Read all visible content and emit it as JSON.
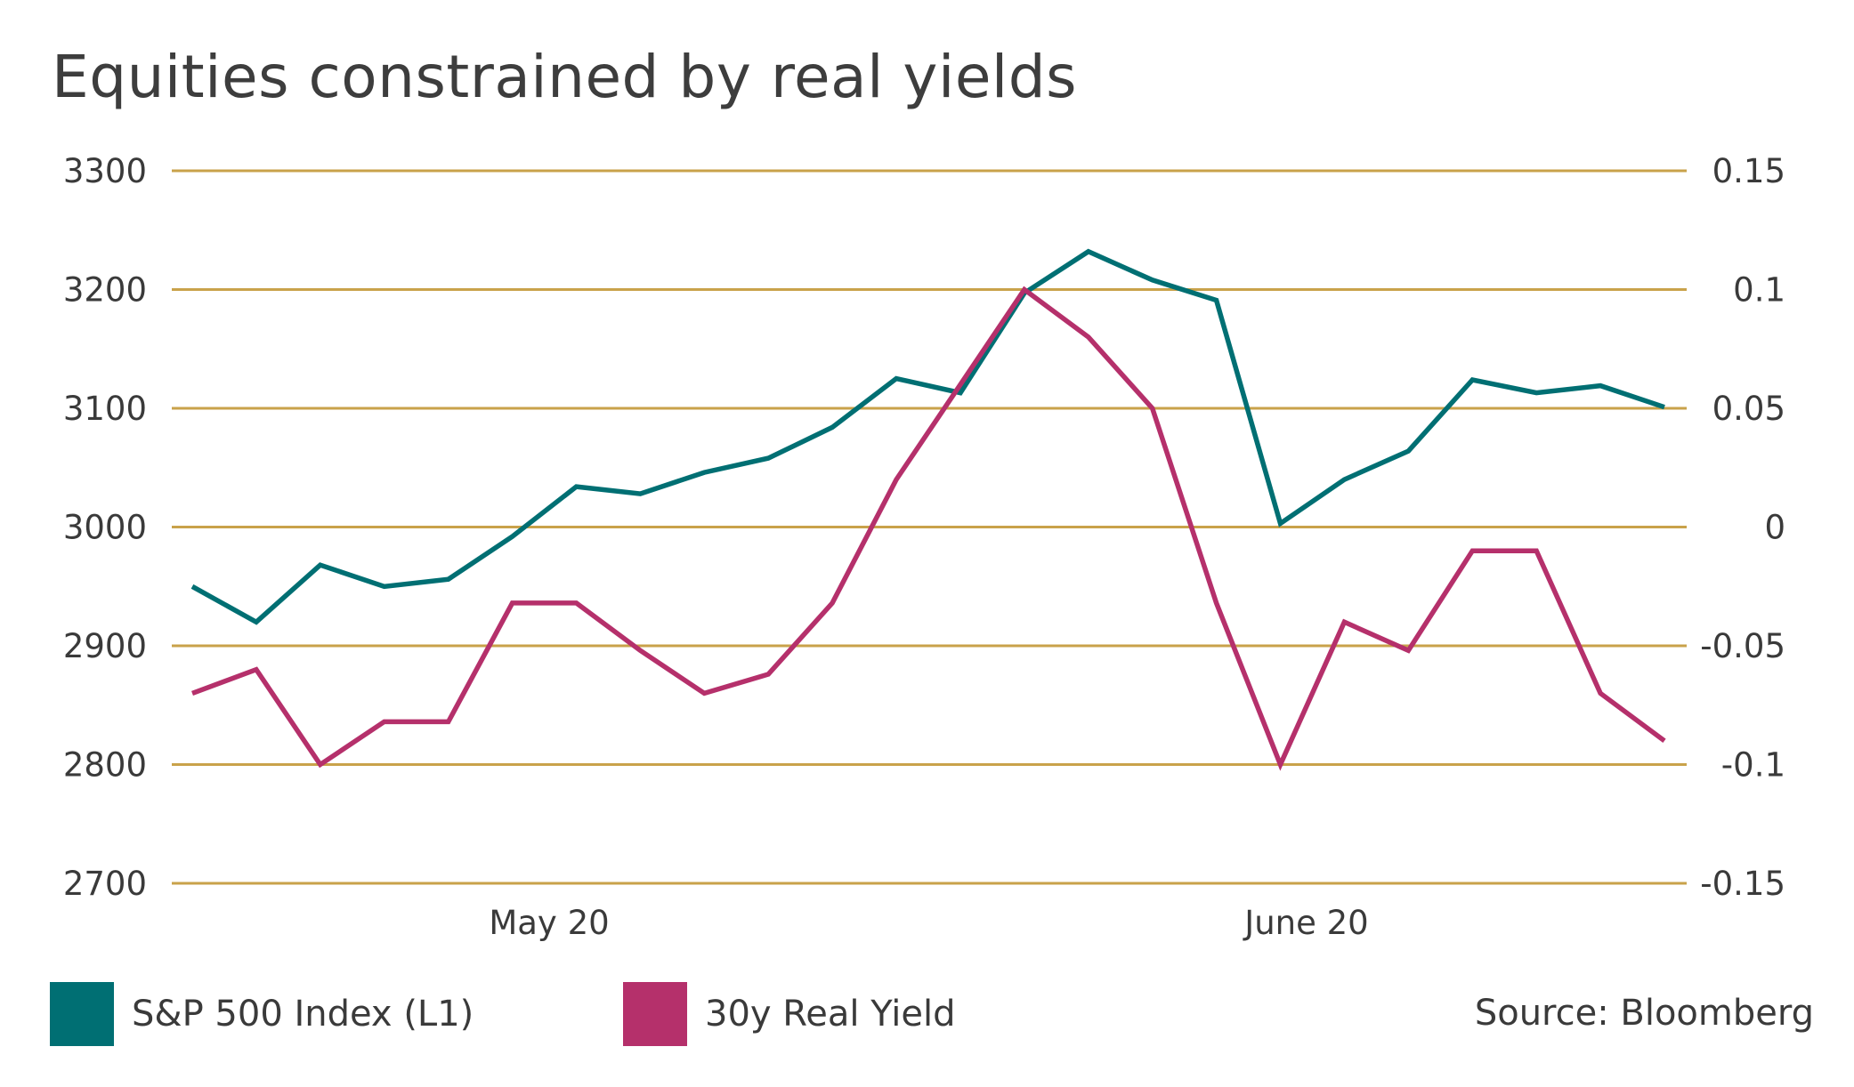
{
  "title": "Equities constrained by real yields",
  "source": "Source: Bloomberg",
  "colors": {
    "sp500": "#006f73",
    "real_yield": "#b5306b",
    "grid": "#c9a24a"
  },
  "chart_data": {
    "type": "line",
    "title": "Equities constrained by real yields",
    "x_ticks": [
      "May 20",
      "June 20"
    ],
    "left_axis": {
      "ylim": [
        2700,
        3300
      ],
      "ticks": [
        "3300",
        "3200",
        "3100",
        "3000",
        "2900",
        "2800",
        "2700"
      ]
    },
    "right_axis": {
      "ylim": [
        -0.15,
        0.15
      ],
      "ticks": [
        "0.15",
        "0.1",
        "0.05",
        "0",
        "-0.05",
        "-0.1",
        "-0.15"
      ]
    },
    "grid": true,
    "legend_position": "bottom-left",
    "series": [
      {
        "name": "S&P 500 Index (L1)",
        "axis": "left",
        "color": "#006f73",
        "values": [
          2950,
          2920,
          2968,
          2950,
          2956,
          2992,
          3034,
          3028,
          3046,
          3058,
          3084,
          3125,
          3113,
          3197,
          3232,
          3208,
          3191,
          3003,
          3040,
          3064,
          3124,
          3113,
          3119,
          3101
        ]
      },
      {
        "name": "30y Real Yield",
        "axis": "right",
        "color": "#b5306b",
        "values": [
          -0.07,
          -0.06,
          -0.1,
          -0.082,
          -0.082,
          -0.032,
          -0.032,
          -0.052,
          -0.07,
          -0.062,
          -0.032,
          0.02,
          0.06,
          0.1,
          0.08,
          0.05,
          -0.032,
          -0.1,
          -0.04,
          -0.052,
          -0.01,
          -0.01,
          -0.07,
          -0.09
        ]
      }
    ]
  }
}
